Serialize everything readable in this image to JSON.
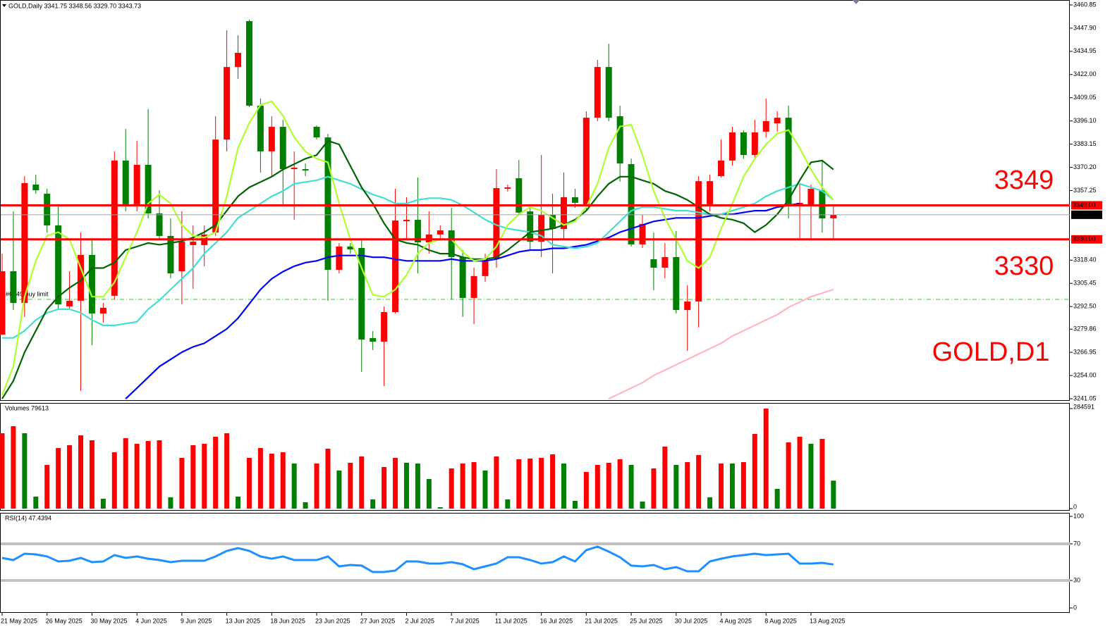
{
  "chart_data": [
    {
      "type": "candlestick",
      "title": "GOLD,Daily  3341.75 3348.56 3329.70 3343.73",
      "up_color": "#ff0000",
      "down_color": "#008000",
      "categories": [
        "21 May 2025",
        null,
        null,
        null,
        "26 May 2025",
        null,
        null,
        null,
        "30 May 2025",
        null,
        null,
        null,
        "4 Jun 2025",
        null,
        null,
        null,
        "9 Jun 2025",
        null,
        null,
        null,
        "13 Jun 2025",
        null,
        null,
        null,
        "18 Jun 2025",
        null,
        null,
        null,
        "23 Jun 2025",
        null,
        null,
        null,
        "27 Jun 2025",
        null,
        null,
        null,
        "2 Jul 2025",
        null,
        null,
        null,
        "7 Jul 2025",
        null,
        null,
        null,
        "11 Jul 2025",
        null,
        null,
        null,
        "16 Jul 2025",
        null,
        null,
        null,
        "21 Jul 2025",
        null,
        null,
        null,
        "25 Jul 2025",
        null,
        null,
        null,
        "30 Jul 2025",
        null,
        null,
        null,
        "4 Aug 2025",
        null,
        null,
        null,
        "8 Aug 2025",
        null,
        null,
        null,
        "13 Aug 2025",
        null,
        null
      ],
      "open": [
        3276.8,
        3312.2,
        3294.5,
        3360.6,
        3355.5,
        3337.8,
        3292.6,
        3295.7,
        3321.3,
        3288.6,
        3298.5,
        3374,
        3349.6,
        3371.6,
        3344.5,
        3331.9,
        3312.2,
        3326.8,
        3326.8,
        3333.8,
        3385.7,
        3426.2,
        3451.8,
        3404.6,
        3379.1,
        3392.8,
        3369.2,
        3369.2,
        3392.8,
        3386.9,
        3313,
        3326,
        3325.2,
        3274.9,
        3272.9,
        3289.4,
        3340.1,
        3340.9,
        3328.3,
        3332.7,
        3335,
        3320.1,
        3297.3,
        3309.5,
        3319.3,
        3358.2,
        3364.1,
        3345.6,
        3328.7,
        3343.7,
        3335.8,
        3353.5,
        3349.6,
        3397.9,
        3426.2,
        3398.7,
        3372,
        3327.2,
        3318.9,
        3314.2,
        3320.1,
        3290.6,
        3295.3,
        3349.6,
        3365.3,
        3374,
        3389.7,
        3377.1,
        3390.1,
        3394.8,
        3397.9,
        3349.6,
        3348.8,
        3357.4,
        3341.75
      ],
      "high": [
        3322,
        3345.6,
        3365.3,
        3366.1,
        3358.2,
        3349.6,
        3312.2,
        3333.8,
        3329.9,
        3294.5,
        3379.1,
        3391.6,
        3385,
        3402.7,
        3357.4,
        3341.7,
        3345.6,
        3337.8,
        3337.8,
        3398.7,
        3446.7,
        3443.9,
        3452.6,
        3408.6,
        3398.7,
        3396.8,
        3379.1,
        3372.4,
        3393.6,
        3388.9,
        3327.9,
        3327.9,
        3329.9,
        3278.8,
        3292.6,
        3358.2,
        3353.5,
        3364.5,
        3345.6,
        3337.8,
        3347.6,
        3324,
        3314.2,
        3322,
        3369.2,
        3360.6,
        3374.3,
        3348.8,
        3377.1,
        3355.5,
        3367.3,
        3358.2,
        3401.5,
        3430.2,
        3439.2,
        3404.6,
        3375.1,
        3343.7,
        3333.8,
        3327.9,
        3334.6,
        3304.4,
        3365.3,
        3366.1,
        3385.7,
        3392.8,
        3390.9,
        3396.8,
        3408.6,
        3401.5,
        3404.6,
        3360.6,
        3360.6,
        3374.3,
        3348.56
      ],
      "low": [
        3276.8,
        3290.6,
        3286.7,
        3355.5,
        3333.8,
        3290.6,
        3290.6,
        3245.4,
        3270.9,
        3283.5,
        3296.5,
        3345.6,
        3345.6,
        3341.7,
        3329.9,
        3308.3,
        3293.7,
        3302.4,
        3315,
        3331.9,
        3379.1,
        3419.6,
        3403.8,
        3367.3,
        3365.3,
        3349.6,
        3340.9,
        3365.3,
        3385.7,
        3295.7,
        3311,
        3322,
        3256,
        3268.2,
        3248.1,
        3288.6,
        3329.9,
        3311,
        3322,
        3329.9,
        3296.5,
        3286.7,
        3282.7,
        3306.3,
        3314.2,
        3356.7,
        3343.7,
        3324,
        3320.1,
        3311,
        3329.9,
        3347.6,
        3345.6,
        3396,
        3396,
        3362.2,
        3326,
        3325.2,
        3301.6,
        3308.3,
        3288.6,
        3267.8,
        3280.8,
        3345.6,
        3364.5,
        3371.2,
        3375.1,
        3375.1,
        3386.9,
        3390.1,
        3341.7,
        3330.7,
        3329.9,
        3333.8,
        3329.7
      ],
      "close": [
        3312.2,
        3294.5,
        3361.4,
        3357.4,
        3337.8,
        3293.7,
        3295.7,
        3321.3,
        3288.6,
        3291.8,
        3374,
        3349.6,
        3371.6,
        3344.5,
        3331.9,
        3311,
        3328.7,
        3328.7,
        3332.7,
        3385.7,
        3426.2,
        3434.1,
        3404.6,
        3379.1,
        3392.8,
        3369.2,
        3370,
        3368.4,
        3386.9,
        3313,
        3326,
        3324.4,
        3274.1,
        3272.9,
        3289.4,
        3340.5,
        3340.9,
        3328.3,
        3332.7,
        3335,
        3320.1,
        3297.3,
        3309.5,
        3319.3,
        3358.6,
        3359,
        3344.9,
        3328.7,
        3343.7,
        3335.8,
        3353.5,
        3350.4,
        3397.9,
        3426.2,
        3397.9,
        3372.4,
        3327.2,
        3338.6,
        3314.2,
        3320.1,
        3290.6,
        3295.3,
        3362.5,
        3362.5,
        3374,
        3389.7,
        3377.1,
        3389.7,
        3396,
        3397.9,
        3349.6,
        3350.4,
        3358.2,
        3341.7,
        3343.73
      ],
      "series": [
        {
          "color": "#ffb6c1",
          "values": [
            null,
            null,
            null,
            null,
            null,
            null,
            null,
            null,
            null,
            null,
            null,
            null,
            null,
            null,
            null,
            null,
            null,
            null,
            null,
            null,
            null,
            null,
            null,
            null,
            null,
            null,
            null,
            null,
            null,
            null,
            null,
            null,
            null,
            null,
            null,
            null,
            null,
            null,
            null,
            null,
            null,
            null,
            null,
            null,
            null,
            null,
            null,
            null,
            null,
            null,
            null,
            null,
            null,
            null,
            3241,
            3244,
            3247,
            3250,
            3254,
            3257,
            3260,
            3263,
            3266,
            3269,
            3272,
            3276,
            3279,
            3282,
            3285,
            3288,
            3292,
            3295,
            3298,
            3300,
            3302
          ]
        },
        {
          "color": "#0000ff",
          "values": [
            null,
            null,
            null,
            null,
            null,
            null,
            null,
            null,
            null,
            null,
            null,
            3241,
            3247,
            3253,
            3259,
            3263,
            3267,
            3270,
            3272,
            3276,
            3280,
            3286,
            3294,
            3302,
            3308,
            3312,
            3315,
            3317,
            3318,
            3320,
            3321,
            3321,
            3321,
            3320,
            3320,
            3319,
            3318,
            3318,
            3318,
            3318,
            3319,
            3318,
            3318,
            3318,
            3319,
            3321,
            3323,
            3324,
            3324,
            3325,
            3325,
            3326,
            3327,
            3329,
            3331,
            3334,
            3336,
            3338,
            3340,
            3341,
            3342,
            3342,
            3342,
            3343,
            3344,
            3344,
            3345,
            3346,
            3346,
            3348,
            3349,
            3350,
            null,
            null,
            null
          ]
        },
        {
          "color": "#40e0d0",
          "values": [
            3275,
            3275,
            3279,
            3285,
            3289,
            3291,
            3291,
            3289,
            3285,
            3282,
            3282,
            3283,
            3284,
            3291,
            3296,
            3302,
            3308,
            3314,
            3322,
            3328,
            3334,
            3342,
            3346,
            3350,
            3354,
            3357,
            3361,
            3362,
            3363,
            3365,
            3363,
            3361,
            3358,
            3355,
            3353,
            3350,
            3350,
            3352,
            3353,
            3353,
            3352,
            3349,
            3345,
            3341,
            3338,
            3336,
            3335,
            3334,
            3332,
            3327,
            3326,
            3325,
            3326,
            3328,
            3334,
            3340,
            3346,
            3348,
            3348,
            3347,
            3346,
            3346,
            3345,
            3344,
            3344,
            3346,
            3348,
            3350,
            3354,
            3357,
            3359,
            3361,
            3359,
            3357,
            3352
          ]
        },
        {
          "color": "#006400",
          "values": [
            3241,
            3251,
            3267,
            3279,
            3291,
            3298,
            3303,
            3307,
            3314,
            3314,
            3317,
            3324,
            3326,
            3328,
            3327,
            3328,
            3329,
            3331,
            3334,
            3338,
            3346,
            3354,
            3359,
            3362,
            3365,
            3369,
            3372,
            3375,
            3377,
            3385,
            3383,
            3371,
            3359,
            3350,
            3339,
            3330,
            3328,
            3327,
            3324,
            3322,
            3322,
            3320,
            3319,
            3319,
            3320,
            3324,
            3329,
            3334,
            3335,
            3336,
            3338,
            3341,
            3346,
            3354,
            3361,
            3365,
            3365,
            3363,
            3361,
            3357,
            3355,
            3352,
            3348,
            3344,
            3342,
            3341,
            3339,
            3334,
            3338,
            3344,
            3352,
            3363,
            3373,
            3374,
            3369
          ]
        },
        {
          "color": "#adff2f",
          "values": [
            3243,
            3259,
            3298,
            3318,
            3332,
            3334,
            3330,
            3314,
            3298,
            3298,
            3306,
            3320,
            3334,
            3350,
            3355,
            3350,
            3338,
            3332,
            3331,
            3334,
            3354,
            3381,
            3395,
            3405,
            3407,
            3399,
            3387,
            3379,
            3375,
            3373,
            3350,
            3330,
            3314,
            3299,
            3298,
            3302,
            3310,
            3322,
            3328,
            3330,
            3330,
            3323,
            3318,
            3319,
            3326,
            3338,
            3344,
            3348,
            3346,
            3342,
            3338,
            3340,
            3348,
            3361,
            3381,
            3393,
            3394,
            3377,
            3357,
            3342,
            3330,
            3318,
            3314,
            3320,
            3336,
            3350,
            3365,
            3375,
            3383,
            3389,
            3391,
            3381,
            3369,
            3359,
            3352
          ]
        }
      ],
      "levels": [
        {
          "value": 3349,
          "label": "3349.00",
          "color": "#ff0000"
        },
        {
          "value": 3330,
          "label": "3330.00",
          "color": "#ff0000"
        }
      ],
      "order_line": {
        "value": 3296.5,
        "label": "#6749 buy limit",
        "color": "#32cd32"
      },
      "annotations": [
        "3349",
        "3330",
        "GOLD,D1"
      ],
      "ylim": [
        3241.05,
        3460.85
      ],
      "yticks": [
        {
          "value": 3460.85,
          "label": "3460.85"
        },
        {
          "value": 3447.9,
          "label": "3447.90"
        },
        {
          "value": 3434.95,
          "label": "3434.95"
        },
        {
          "value": 3422,
          "label": "3422.00"
        },
        {
          "value": 3409.05,
          "label": "3409.05"
        },
        {
          "value": 3396.1,
          "label": "3396.10"
        },
        {
          "value": 3383.15,
          "label": "3383.15"
        },
        {
          "value": 3370.2,
          "label": "3370.20"
        },
        {
          "value": 3357.25,
          "label": "3357.25"
        },
        {
          "value": 3318.4,
          "label": "3318.40"
        },
        {
          "value": 3305.45,
          "label": "3305.45"
        },
        {
          "value": 3292.5,
          "label": "3292.50"
        },
        {
          "value": 3279.86,
          "label": "3279.86"
        },
        {
          "value": 3266.95,
          "label": "3266.95"
        },
        {
          "value": 3254,
          "label": "3254.00"
        },
        {
          "value": 3241.05,
          "label": "3241.05"
        }
      ]
    },
    {
      "type": "bar",
      "title": "Volumes 79613",
      "values": [
        214428,
        234468,
        214428,
        34068,
        124248,
        172344,
        180360,
        208416,
        194388,
        28056,
        160320,
        200400,
        184368,
        192384,
        194388,
        32064,
        144288,
        180360,
        184368,
        204408,
        214428,
        34068,
        144288,
        172344,
        156312,
        160320,
        128256,
        18036,
        128256,
        170340,
        108216,
        130260,
        148296,
        26052,
        118236,
        144288,
        130260,
        128256,
        84168,
        4008,
        114228,
        128256,
        132264,
        108216,
        148296,
        26052,
        140280,
        142284,
        144288,
        154308,
        128256,
        22044,
        104208,
        124248,
        130260,
        140280,
        124248,
        20040,
        114228,
        176352,
        124248,
        132264,
        152304,
        32064,
        128256,
        128256,
        132264,
        212424,
        284591,
        56112,
        188376,
        204408,
        184368,
        198396,
        79613
      ],
      "colors": [
        "#ff0000",
        "#ff0000",
        "#008000",
        "#008000",
        "#ff0000",
        "#ff0000",
        "#ff0000",
        "#ff0000",
        "#ff0000",
        "#008000",
        "#ff0000",
        "#ff0000",
        "#ff0000",
        "#ff0000",
        "#ff0000",
        "#008000",
        "#ff0000",
        "#ff0000",
        "#ff0000",
        "#ff0000",
        "#ff0000",
        "#008000",
        "#ff0000",
        "#ff0000",
        "#ff0000",
        "#ff0000",
        "#008000",
        "#008000",
        "#ff0000",
        "#ff0000",
        "#008000",
        "#ff0000",
        "#ff0000",
        "#008000",
        "#ff0000",
        "#ff0000",
        "#008000",
        "#008000",
        "#008000",
        "#008000",
        "#ff0000",
        "#ff0000",
        "#ff0000",
        "#008000",
        "#ff0000",
        "#008000",
        "#ff0000",
        "#ff0000",
        "#ff0000",
        "#ff0000",
        "#008000",
        "#008000",
        "#ff0000",
        "#ff0000",
        "#ff0000",
        "#ff0000",
        "#008000",
        "#008000",
        "#ff0000",
        "#ff0000",
        "#008000",
        "#ff0000",
        "#ff0000",
        "#008000",
        "#ff0000",
        "#008000",
        "#ff0000",
        "#ff0000",
        "#ff0000",
        "#008000",
        "#ff0000",
        "#ff0000",
        "#008000",
        "#ff0000",
        "#008000"
      ],
      "ylim": [
        0,
        284591
      ],
      "yticks": [
        0,
        284591
      ]
    },
    {
      "type": "line",
      "title": "RSI(14) 47.4394",
      "color": "#1e90ff",
      "level_lines": true,
      "values": [
        54.6,
        52.3,
        59.2,
        58.5,
        56.2,
        50.8,
        51.5,
        54.6,
        50.0,
        50.8,
        57.7,
        54.6,
        56.2,
        53.8,
        52.3,
        50.0,
        51.5,
        51.5,
        51.5,
        56.2,
        62.3,
        65.4,
        62.3,
        56.2,
        53.8,
        56.2,
        52.3,
        52.3,
        52.3,
        56.2,
        45.4,
        46.9,
        46.2,
        39.2,
        39.2,
        40.8,
        50.8,
        50.8,
        48.5,
        48.5,
        50.0,
        47.7,
        42.3,
        45.4,
        48.5,
        55.4,
        55.4,
        52.3,
        48.5,
        50.0,
        56.2,
        50.8,
        63.1,
        66.9,
        61.5,
        55.4,
        46.2,
        45.4,
        46.9,
        42.3,
        44.6,
        40.0,
        40.0,
        50.8,
        53.8,
        56.2,
        57.7,
        59.2,
        57.7,
        58.5,
        59.2,
        48.5,
        48.5,
        49.2,
        47.4394
      ],
      "ylim": [
        0,
        100
      ],
      "yticks": [
        0,
        30,
        70,
        100
      ]
    }
  ]
}
